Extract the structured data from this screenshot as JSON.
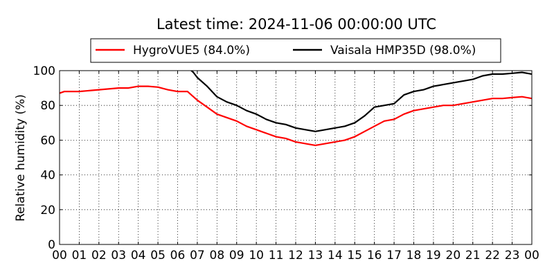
{
  "chart_data": {
    "type": "line",
    "title": "Latest time: 2024-11-06 00:00:00 UTC",
    "ylabel": "Relative humidity (%)",
    "xlabel": "",
    "xlim": [
      0,
      24
    ],
    "ylim": [
      0,
      100
    ],
    "grid": true,
    "legend_position": "top-outside",
    "x_tick_labels": [
      "00",
      "01",
      "02",
      "03",
      "04",
      "05",
      "06",
      "07",
      "08",
      "09",
      "10",
      "11",
      "12",
      "13",
      "14",
      "15",
      "16",
      "17",
      "18",
      "19",
      "20",
      "21",
      "22",
      "23",
      "00"
    ],
    "y_ticks": [
      0,
      20,
      40,
      60,
      80,
      100
    ],
    "series": [
      {
        "name": "HygroVUE5 (84.0%)",
        "color": "#ff0000",
        "points": [
          [
            0,
            87
          ],
          [
            0.25,
            88
          ],
          [
            0.5,
            88
          ],
          [
            1,
            88
          ],
          [
            1.5,
            88.5
          ],
          [
            2,
            89
          ],
          [
            2.5,
            89.5
          ],
          [
            3,
            90
          ],
          [
            3.5,
            90
          ],
          [
            4,
            91
          ],
          [
            4.5,
            91
          ],
          [
            5,
            90.5
          ],
          [
            5.5,
            89
          ],
          [
            6,
            88
          ],
          [
            6.5,
            88
          ],
          [
            7,
            83
          ],
          [
            7.5,
            79
          ],
          [
            8,
            75
          ],
          [
            8.5,
            73
          ],
          [
            9,
            71
          ],
          [
            9.5,
            68
          ],
          [
            10,
            66
          ],
          [
            10.5,
            64
          ],
          [
            11,
            62
          ],
          [
            11.5,
            61
          ],
          [
            12,
            59
          ],
          [
            12.5,
            58
          ],
          [
            13,
            57
          ],
          [
            13.5,
            58
          ],
          [
            14,
            59
          ],
          [
            14.5,
            60
          ],
          [
            15,
            62
          ],
          [
            15.5,
            65
          ],
          [
            16,
            68
          ],
          [
            16.5,
            71
          ],
          [
            17,
            72
          ],
          [
            17.5,
            75
          ],
          [
            18,
            77
          ],
          [
            18.5,
            78
          ],
          [
            19,
            79
          ],
          [
            19.5,
            80
          ],
          [
            20,
            80
          ],
          [
            20.5,
            81
          ],
          [
            21,
            82
          ],
          [
            21.5,
            83
          ],
          [
            22,
            84
          ],
          [
            22.5,
            84
          ],
          [
            23,
            84.5
          ],
          [
            23.5,
            85
          ],
          [
            24,
            84
          ]
        ]
      },
      {
        "name": "Vaisala HMP35D (98.0%)",
        "color": "#000000",
        "points": [
          [
            6.6,
            101
          ],
          [
            6.8,
            99
          ],
          [
            7,
            96
          ],
          [
            7.5,
            91
          ],
          [
            8,
            85
          ],
          [
            8.5,
            82
          ],
          [
            9,
            80
          ],
          [
            9.5,
            77
          ],
          [
            10,
            75
          ],
          [
            10.5,
            72
          ],
          [
            11,
            70
          ],
          [
            11.5,
            69
          ],
          [
            12,
            67
          ],
          [
            12.5,
            66
          ],
          [
            13,
            65
          ],
          [
            13.5,
            66
          ],
          [
            14,
            67
          ],
          [
            14.5,
            68
          ],
          [
            15,
            70
          ],
          [
            15.5,
            74
          ],
          [
            16,
            79
          ],
          [
            16.5,
            80
          ],
          [
            17,
            81
          ],
          [
            17.5,
            86
          ],
          [
            18,
            88
          ],
          [
            18.5,
            89
          ],
          [
            19,
            91
          ],
          [
            19.5,
            92
          ],
          [
            20,
            93
          ],
          [
            20.5,
            94
          ],
          [
            21,
            95
          ],
          [
            21.5,
            97
          ],
          [
            22,
            98
          ],
          [
            22.5,
            98
          ],
          [
            23,
            98.5
          ],
          [
            23.5,
            99
          ],
          [
            24,
            98
          ]
        ]
      }
    ]
  }
}
